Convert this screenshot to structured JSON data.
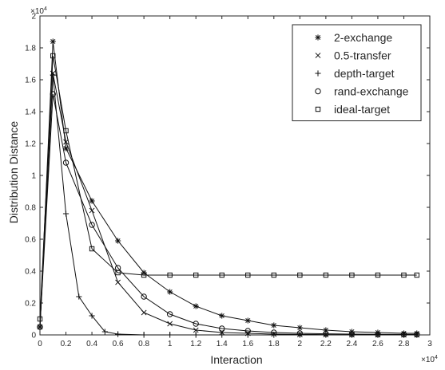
{
  "chart_data": {
    "type": "line",
    "title": "",
    "xlabel": "Interaction",
    "ylabel": "Distribution Distance",
    "x_exponent_label": "×10",
    "x_exponent_power": "4",
    "y_exponent_label": "×10",
    "y_exponent_power": "4",
    "xlim": [
      0,
      3
    ],
    "ylim": [
      0,
      2
    ],
    "x_ticks": [
      0,
      0.2,
      0.4,
      0.6,
      0.8,
      1,
      1.2,
      1.4,
      1.6,
      1.8,
      2,
      2.2,
      2.4,
      2.6,
      2.8,
      3
    ],
    "y_ticks": [
      0,
      0.2,
      0.4,
      0.6,
      0.8,
      1,
      1.2,
      1.4,
      1.6,
      1.8,
      2
    ],
    "x_tick_labels": [
      "0",
      "0.2",
      "0.4",
      "0.6",
      "0.8",
      "1",
      "1.2",
      "1.4",
      "1.6",
      "1.8",
      "2",
      "2.2",
      "2.4",
      "2.6",
      "2.8",
      "3"
    ],
    "y_tick_labels": [
      "0",
      "0.2",
      "0.4",
      "0.6",
      "0.8",
      "1",
      "1.2",
      "1.4",
      "1.6",
      "1.8",
      "2"
    ],
    "grid": false,
    "legend_position": "top-right",
    "series": [
      {
        "name": "2-exchange",
        "marker": "asterisk",
        "x": [
          0,
          0.1,
          0.2,
          0.4,
          0.6,
          0.8,
          1.0,
          1.2,
          1.4,
          1.6,
          1.8,
          2.0,
          2.2,
          2.4,
          2.6,
          2.8,
          2.9
        ],
        "y": [
          0.05,
          1.84,
          1.17,
          0.84,
          0.59,
          0.39,
          0.27,
          0.18,
          0.12,
          0.09,
          0.06,
          0.045,
          0.03,
          0.02,
          0.015,
          0.01,
          0.01
        ]
      },
      {
        "name": "0.5-transfer",
        "marker": "x",
        "x": [
          0,
          0.1,
          0.2,
          0.4,
          0.6,
          0.8,
          1.0,
          1.2,
          1.4,
          1.6,
          1.8,
          2.0,
          2.2,
          2.4,
          2.6,
          2.8,
          2.9
        ],
        "y": [
          0.05,
          1.64,
          1.21,
          0.78,
          0.33,
          0.14,
          0.07,
          0.03,
          0.015,
          0.01,
          0.005,
          0.003,
          0.002,
          0.001,
          0.001,
          0.0,
          0.0
        ]
      },
      {
        "name": "depth-target",
        "marker": "plus",
        "x": [
          0,
          0.1,
          0.2,
          0.3,
          0.4,
          0.5,
          0.6,
          0.8,
          1.0,
          1.2,
          1.4,
          1.6,
          1.8,
          2.0,
          2.2,
          2.4,
          2.6,
          2.8,
          2.9
        ],
        "y": [
          0.05,
          1.63,
          0.76,
          0.24,
          0.12,
          0.02,
          0.005,
          0.0,
          0.0,
          0.0,
          0.0,
          0.0,
          0.0,
          0.0,
          0.0,
          0.0,
          0.0,
          0.0,
          0.0
        ]
      },
      {
        "name": "rand-exchange",
        "marker": "circle",
        "x": [
          0,
          0.1,
          0.2,
          0.4,
          0.6,
          0.8,
          1.0,
          1.2,
          1.4,
          1.6,
          1.8,
          2.0,
          2.2,
          2.4,
          2.6,
          2.8,
          2.9
        ],
        "y": [
          0.05,
          1.51,
          1.08,
          0.69,
          0.42,
          0.24,
          0.13,
          0.07,
          0.04,
          0.025,
          0.015,
          0.01,
          0.007,
          0.005,
          0.004,
          0.003,
          0.003
        ]
      },
      {
        "name": "ideal-target",
        "marker": "square",
        "x": [
          0,
          0.1,
          0.2,
          0.4,
          0.6,
          0.8,
          1.0,
          1.2,
          1.4,
          1.6,
          1.8,
          2.0,
          2.2,
          2.4,
          2.6,
          2.8,
          2.9
        ],
        "y": [
          0.1,
          1.75,
          1.28,
          0.54,
          0.39,
          0.375,
          0.375,
          0.375,
          0.375,
          0.375,
          0.375,
          0.375,
          0.375,
          0.375,
          0.375,
          0.375,
          0.375
        ]
      }
    ]
  }
}
